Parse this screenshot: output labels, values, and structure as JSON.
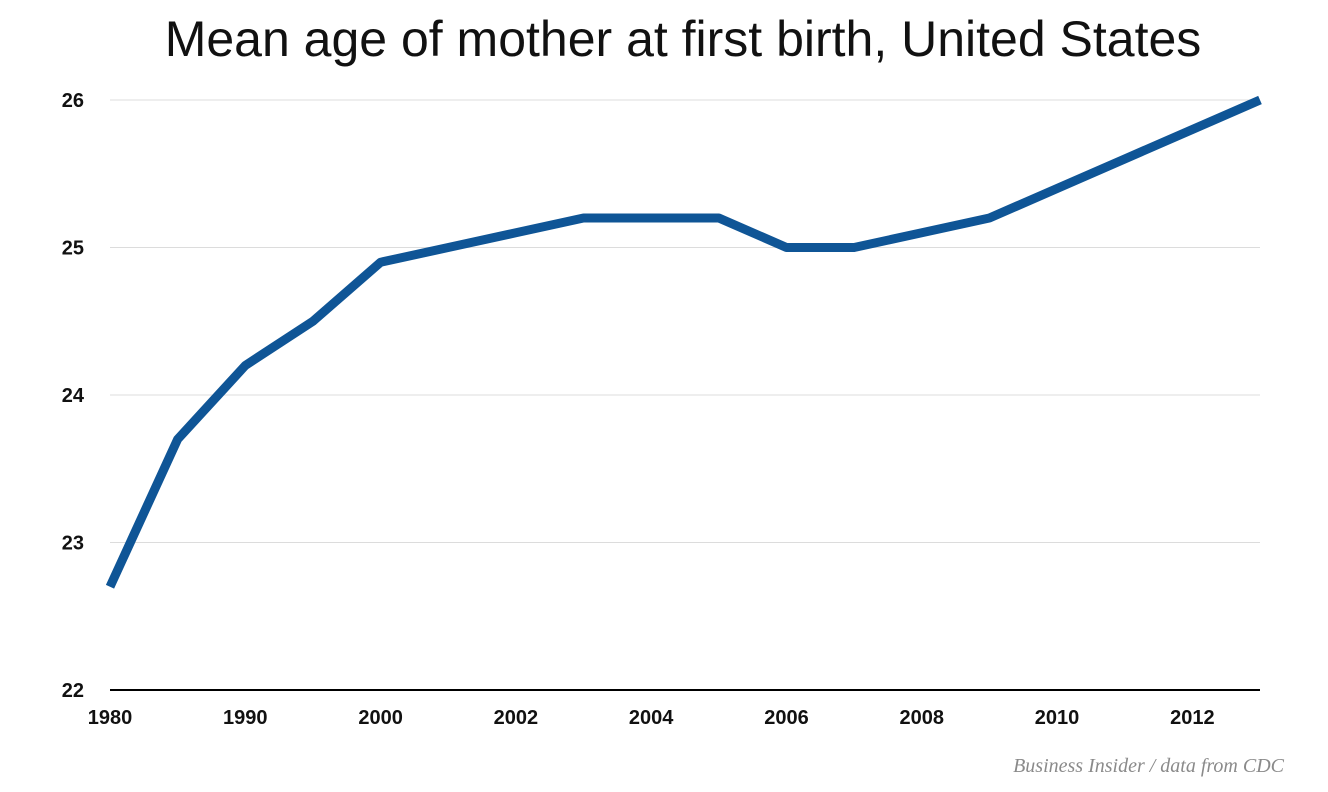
{
  "chart_data": {
    "type": "line",
    "title": "Mean age of mother at first birth, United States",
    "xlabel": "",
    "ylabel": "",
    "ylim": [
      22,
      26
    ],
    "yticks": [
      "22",
      "23",
      "24",
      "25",
      "26"
    ],
    "xticks": [
      "1980",
      "1990",
      "2000",
      "2002",
      "2004",
      "2006",
      "2008",
      "2010",
      "2012"
    ],
    "categories": [
      "1980",
      "1985",
      "1990",
      "1995",
      "2000",
      "2001",
      "2002",
      "2003",
      "2004",
      "2005",
      "2006",
      "2007",
      "2008",
      "2009",
      "2010",
      "2011",
      "2012",
      "2013"
    ],
    "series": [
      {
        "name": "",
        "values": [
          22.7,
          23.7,
          24.2,
          24.5,
          24.9,
          25.0,
          25.1,
          25.2,
          25.2,
          25.2,
          25.0,
          25.0,
          25.1,
          25.2,
          25.4,
          25.6,
          25.8,
          26.0
        ],
        "color": "#0f5596"
      }
    ],
    "grid": true,
    "legend": "none"
  },
  "source_note": "Business Insider / data from CDC"
}
